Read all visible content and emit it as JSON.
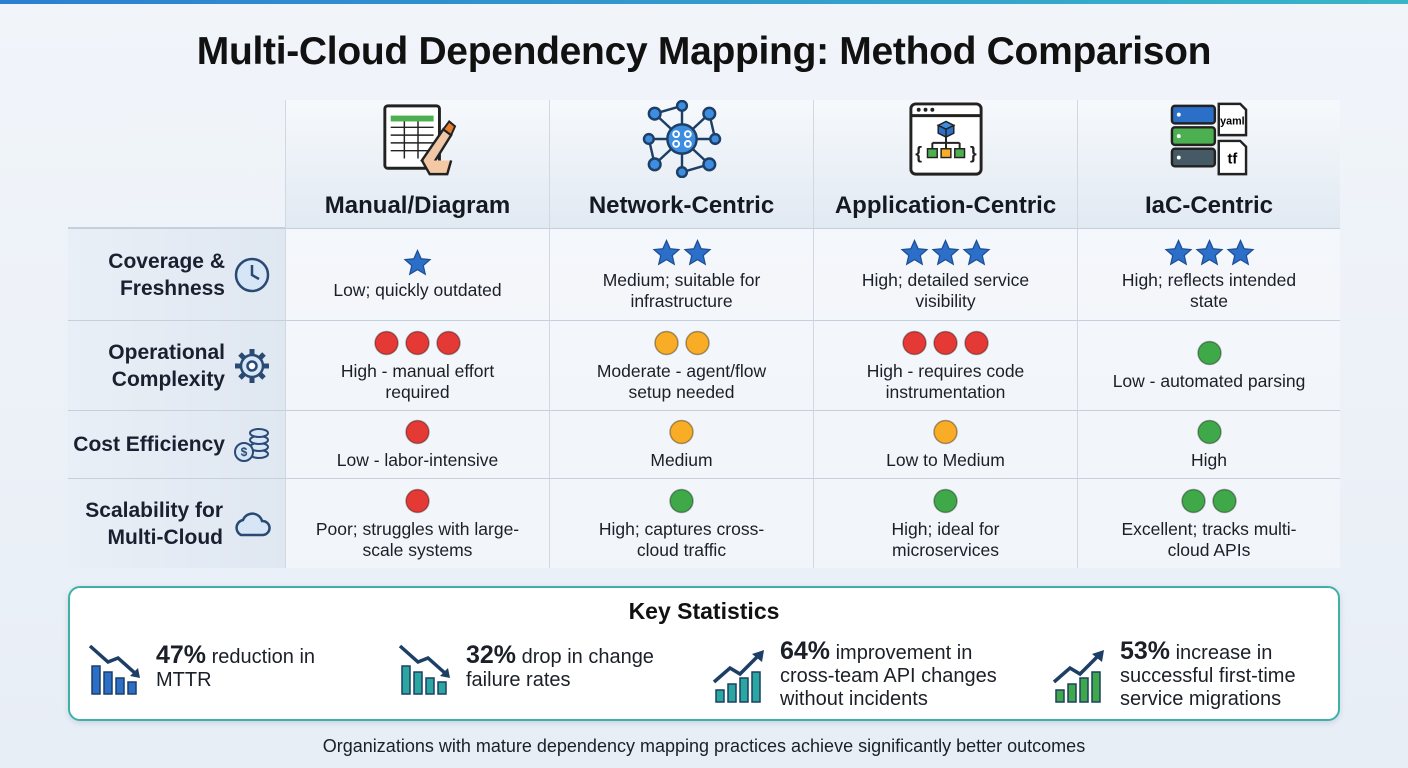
{
  "title": "Multi-Cloud Dependency Mapping: Method Comparison",
  "columns": [
    {
      "label": "Manual/Diagram"
    },
    {
      "label": "Network-Centric"
    },
    {
      "label": "Application-Centric"
    },
    {
      "label": "IaC-Centric",
      "icon_labels": [
        "yaml",
        "tf"
      ]
    }
  ],
  "rows": [
    {
      "label": "Coverage & Freshness",
      "mark": "star",
      "cells": [
        {
          "rating": 1,
          "color": "#2b6fc8",
          "text": "Low; quickly outdated"
        },
        {
          "rating": 2,
          "color": "#2b6fc8",
          "text": "Medium; suitable for infrastructure"
        },
        {
          "rating": 3,
          "color": "#2b6fc8",
          "text": "High; detailed service visibility"
        },
        {
          "rating": 3,
          "color": "#2b6fc8",
          "text": "High; reflects intended state"
        }
      ]
    },
    {
      "label": "Operational Complexity",
      "mark": "dot",
      "cells": [
        {
          "rating": 3,
          "color": "#e53935",
          "text": "High - manual effort required"
        },
        {
          "rating": 2,
          "color": "#f9ac25",
          "text": "Moderate - agent/flow setup needed"
        },
        {
          "rating": 3,
          "color": "#e53935",
          "text": "High - requires code instrumentation"
        },
        {
          "rating": 1,
          "color": "#3fa94a",
          "text": "Low - automated parsing"
        }
      ]
    },
    {
      "label": "Cost Efficiency",
      "mark": "dot",
      "cells": [
        {
          "rating": 1,
          "color": "#e53935",
          "text": "Low - labor-intensive"
        },
        {
          "rating": 1,
          "color": "#f9ac25",
          "text": "Medium"
        },
        {
          "rating": 1,
          "color": "#f9ac25",
          "text": "Low to Medium"
        },
        {
          "rating": 1,
          "color": "#3fa94a",
          "text": "High"
        }
      ]
    },
    {
      "label": "Scalability for Multi-Cloud",
      "mark": "dot",
      "cells": [
        {
          "rating": 1,
          "color": "#e53935",
          "text": "Poor; struggles with large-scale systems"
        },
        {
          "rating": 1,
          "color": "#3fa94a",
          "text": "High; captures cross-cloud traffic"
        },
        {
          "rating": 1,
          "color": "#3fa94a",
          "text": "High; ideal for microservices"
        },
        {
          "rating": 2,
          "color": "#3fa94a",
          "text": "Excellent; tracks multi-cloud APIs"
        }
      ]
    }
  ],
  "stats": {
    "title": "Key Statistics",
    "items": [
      {
        "value": "47%",
        "text": "reduction in MTTR"
      },
      {
        "value": "32%",
        "text": "drop in change failure rates"
      },
      {
        "value": "64%",
        "text": "improvement in cross-team API changes without incidents"
      },
      {
        "value": "53%",
        "text": "increase in successful first-time service migrations"
      }
    ]
  },
  "footer": "Organizations with mature dependency mapping practices achieve significantly better outcomes"
}
